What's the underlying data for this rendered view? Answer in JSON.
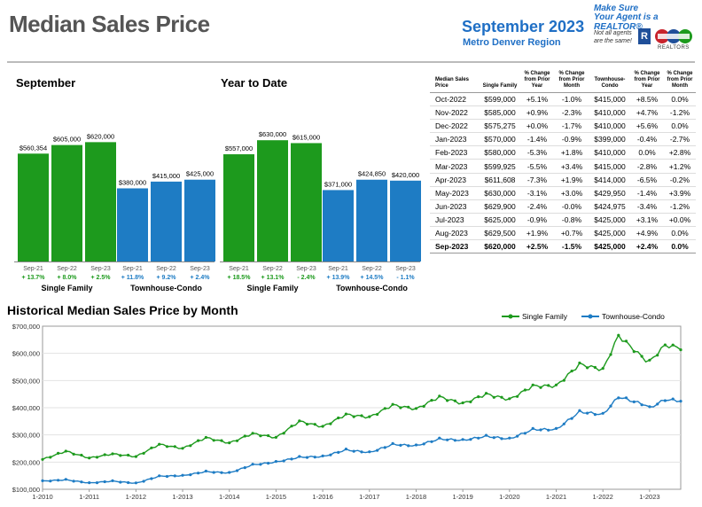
{
  "header": {
    "title": "Median Sales Price",
    "period": "September 2023",
    "region": "Metro Denver Region",
    "logo": {
      "line1": "Make Sure",
      "line2": "Your Agent is a REALTOR®",
      "line3": "Not all agents are the same!",
      "mark": "R",
      "brand": "REALTORS"
    }
  },
  "colors": {
    "single_family": "#1d9a1d",
    "townhouse": "#1e7cc4"
  },
  "panels": {
    "september": {
      "title": "September",
      "groups": [
        {
          "name": "Single Family",
          "bars": [
            {
              "label": "Sep-21",
              "value": 560354,
              "value_text": "$560,354",
              "change": "+ 13.7%"
            },
            {
              "label": "Sep-22",
              "value": 605000,
              "value_text": "$605,000",
              "change": "+ 8.0%"
            },
            {
              "label": "Sep-23",
              "value": 620000,
              "value_text": "$620,000",
              "change": "+ 2.5%"
            }
          ]
        },
        {
          "name": "Townhouse-Condo",
          "bars": [
            {
              "label": "Sep-21",
              "value": 380000,
              "value_text": "$380,000",
              "change": "+ 11.8%"
            },
            {
              "label": "Sep-22",
              "value": 415000,
              "value_text": "$415,000",
              "change": "+ 9.2%"
            },
            {
              "label": "Sep-23",
              "value": 425000,
              "value_text": "$425,000",
              "change": "+ 2.4%"
            }
          ]
        }
      ]
    },
    "ytd": {
      "title": "Year to Date",
      "groups": [
        {
          "name": "Single Family",
          "bars": [
            {
              "label": "Sep-21",
              "value": 557000,
              "value_text": "$557,000",
              "change": "+ 18.5%"
            },
            {
              "label": "Sep-22",
              "value": 630000,
              "value_text": "$630,000",
              "change": "+ 13.1%"
            },
            {
              "label": "Sep-23",
              "value": 615000,
              "value_text": "$615,000",
              "change": "- 2.4%"
            }
          ]
        },
        {
          "name": "Townhouse-Condo",
          "bars": [
            {
              "label": "Sep-21",
              "value": 371000,
              "value_text": "$371,000",
              "change": "+ 13.9%"
            },
            {
              "label": "Sep-22",
              "value": 424850,
              "value_text": "$424,850",
              "change": "+ 14.5%"
            },
            {
              "label": "Sep-23",
              "value": 420000,
              "value_text": "$420,000",
              "change": "- 1.1%"
            }
          ]
        }
      ]
    }
  },
  "table": {
    "headers": [
      "Median Sales Price",
      "Single Family",
      "% Change from Prior Year",
      "% Change from Prior Month",
      "Townhouse-Condo",
      "% Change from Prior Year",
      "% Change from Prior Month"
    ],
    "rows": [
      [
        "Oct-2022",
        "$599,000",
        "+5.1%",
        "-1.0%",
        "$415,000",
        "+8.5%",
        "0.0%"
      ],
      [
        "Nov-2022",
        "$585,000",
        "+0.9%",
        "-2.3%",
        "$410,000",
        "+4.7%",
        "-1.2%"
      ],
      [
        "Dec-2022",
        "$575,275",
        "+0.0%",
        "-1.7%",
        "$410,000",
        "+5.6%",
        "0.0%"
      ],
      [
        "Jan-2023",
        "$570,000",
        "-1.4%",
        "-0.9%",
        "$399,000",
        "-0.4%",
        "-2.7%"
      ],
      [
        "Feb-2023",
        "$580,000",
        "-5.3%",
        "+1.8%",
        "$410,000",
        "0.0%",
        "+2.8%"
      ],
      [
        "Mar-2023",
        "$599,925",
        "-5.5%",
        "+3.4%",
        "$415,000",
        "-2.8%",
        "+1.2%"
      ],
      [
        "Apr-2023",
        "$611,608",
        "-7.3%",
        "+1.9%",
        "$414,000",
        "-6.5%",
        "-0.2%"
      ],
      [
        "May-2023",
        "$630,000",
        "-3.1%",
        "+3.0%",
        "$429,950",
        "-1.4%",
        "+3.9%"
      ],
      [
        "Jun-2023",
        "$629,900",
        "-2.4%",
        "-0.0%",
        "$424,975",
        "-3.4%",
        "-1.2%"
      ],
      [
        "Jul-2023",
        "$625,000",
        "-0.9%",
        "-0.8%",
        "$425,000",
        "+3.1%",
        "+0.0%"
      ],
      [
        "Aug-2023",
        "$629,500",
        "+1.9%",
        "+0.7%",
        "$425,000",
        "+4.9%",
        "0.0%"
      ],
      [
        "Sep-2023",
        "$620,000",
        "+2.5%",
        "-1.5%",
        "$425,000",
        "+2.4%",
        "0.0%"
      ]
    ]
  },
  "history": {
    "title": "Historical Median Sales Price by Month",
    "yticks": [
      "$100,000",
      "$200,000",
      "$300,000",
      "$400,000",
      "$500,000",
      "$600,000",
      "$700,000"
    ],
    "xticks": [
      "1-2010",
      "1-2011",
      "1-2012",
      "1-2013",
      "1-2014",
      "1-2015",
      "1-2016",
      "1-2017",
      "1-2018",
      "1-2019",
      "1-2020",
      "1-2021",
      "1-2022",
      "1-2023"
    ]
  },
  "chart_data": {
    "type": "line",
    "title": "Historical Median Sales Price by Month",
    "x_start": "2010-01",
    "x_end": "2023-09",
    "ylim": [
      100000,
      700000
    ],
    "grid": true,
    "legend": "top-right",
    "series": [
      {
        "name": "Single Family",
        "anchors": [
          [
            "2010-01",
            210000
          ],
          [
            "2010-07",
            240000
          ],
          [
            "2011-01",
            215000
          ],
          [
            "2011-07",
            230000
          ],
          [
            "2012-01",
            220000
          ],
          [
            "2012-07",
            265000
          ],
          [
            "2013-01",
            250000
          ],
          [
            "2013-07",
            290000
          ],
          [
            "2014-01",
            270000
          ],
          [
            "2014-07",
            305000
          ],
          [
            "2015-01",
            290000
          ],
          [
            "2015-07",
            350000
          ],
          [
            "2016-01",
            330000
          ],
          [
            "2016-07",
            375000
          ],
          [
            "2017-01",
            365000
          ],
          [
            "2017-07",
            410000
          ],
          [
            "2018-01",
            395000
          ],
          [
            "2018-07",
            440000
          ],
          [
            "2019-01",
            415000
          ],
          [
            "2019-07",
            450000
          ],
          [
            "2020-01",
            430000
          ],
          [
            "2020-07",
            480000
          ],
          [
            "2021-01",
            480000
          ],
          [
            "2021-07",
            560000
          ],
          [
            "2022-01",
            540000
          ],
          [
            "2022-05",
            665000
          ],
          [
            "2022-12",
            575000
          ],
          [
            "2023-01",
            570000
          ],
          [
            "2023-05",
            630000
          ],
          [
            "2023-09",
            620000
          ]
        ]
      },
      {
        "name": "Townhouse-Condo",
        "anchors": [
          [
            "2010-01",
            130000
          ],
          [
            "2010-07",
            135000
          ],
          [
            "2011-01",
            123000
          ],
          [
            "2011-07",
            130000
          ],
          [
            "2012-01",
            122000
          ],
          [
            "2012-07",
            148000
          ],
          [
            "2013-01",
            150000
          ],
          [
            "2013-07",
            165000
          ],
          [
            "2014-01",
            160000
          ],
          [
            "2014-07",
            190000
          ],
          [
            "2015-01",
            200000
          ],
          [
            "2015-07",
            218000
          ],
          [
            "2016-01",
            220000
          ],
          [
            "2016-07",
            245000
          ],
          [
            "2017-01",
            235000
          ],
          [
            "2017-07",
            265000
          ],
          [
            "2018-01",
            260000
          ],
          [
            "2018-07",
            285000
          ],
          [
            "2019-01",
            280000
          ],
          [
            "2019-07",
            295000
          ],
          [
            "2020-01",
            285000
          ],
          [
            "2020-07",
            320000
          ],
          [
            "2021-01",
            320000
          ],
          [
            "2021-07",
            385000
          ],
          [
            "2022-01",
            375000
          ],
          [
            "2022-05",
            440000
          ],
          [
            "2022-12",
            410000
          ],
          [
            "2023-01",
            399000
          ],
          [
            "2023-05",
            429950
          ],
          [
            "2023-09",
            425000
          ]
        ]
      }
    ]
  }
}
